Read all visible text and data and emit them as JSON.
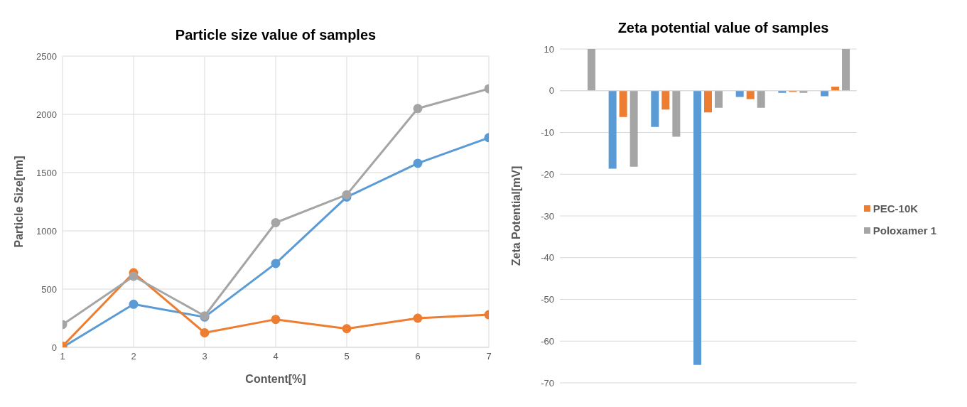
{
  "chart_data": [
    {
      "type": "line",
      "title": "Particle size value of samples",
      "xlabel": "Content[%]",
      "ylabel": "Particle Size[nm]",
      "x": [
        1,
        2,
        3,
        4,
        5,
        6,
        7
      ],
      "xlim": [
        1,
        7
      ],
      "xticks": [
        1,
        2,
        3,
        4,
        5,
        6,
        7
      ],
      "ylim": [
        0,
        2500
      ],
      "yticks": [
        0,
        500,
        1000,
        1500,
        2000,
        2500
      ],
      "grid": true,
      "marker": "circle",
      "legend": false,
      "series": [
        {
          "color": "#5b9bd5",
          "values": [
            0,
            370,
            260,
            720,
            1290,
            1580,
            1800
          ]
        },
        {
          "color": "#ed7d31",
          "values": [
            10,
            640,
            125,
            240,
            160,
            250,
            280
          ]
        },
        {
          "color": "#a5a5a5",
          "values": [
            195,
            610,
            270,
            1070,
            1310,
            2050,
            2220
          ]
        }
      ]
    },
    {
      "type": "bar",
      "title": "Zeta potential value of samples",
      "ylabel": "Zeta Potential[mV]",
      "categories": [
        null,
        null,
        null,
        null,
        null,
        null,
        null
      ],
      "ylim": [
        -70,
        10
      ],
      "yticks": [
        -70,
        -60,
        -50,
        -40,
        -30,
        -20,
        -10,
        0,
        10
      ],
      "grid": "y",
      "legend": "right",
      "series": [
        {
          "color": "#5b9bd5",
          "values": [
            0,
            -18.7,
            -8.7,
            -65.7,
            -1.5,
            -0.5,
            -1.3
          ]
        },
        {
          "name": "PEC-10K",
          "color": "#ed7d31",
          "values": [
            0,
            -6.3,
            -4.5,
            -5.2,
            -2,
            -0.3,
            1
          ]
        },
        {
          "name": "Poloxamer 1",
          "color": "#a5a5a5",
          "values": [
            10,
            -18.2,
            -11,
            -4.1,
            -4.1,
            -0.5,
            10
          ]
        }
      ]
    }
  ]
}
